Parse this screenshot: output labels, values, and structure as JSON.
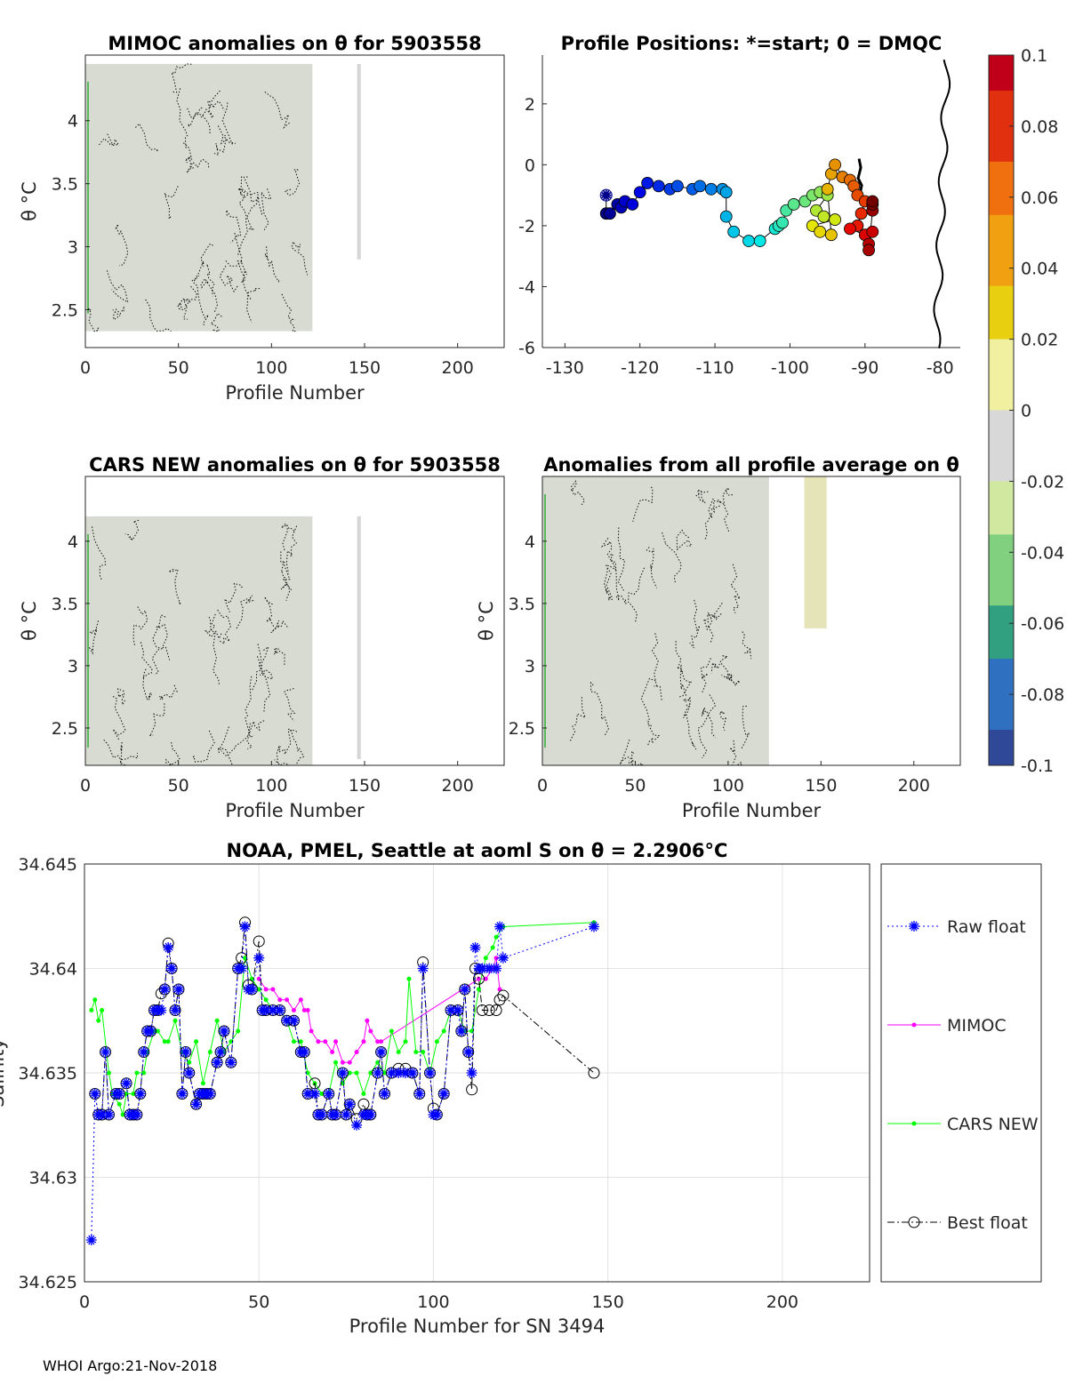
{
  "chart_data": [
    {
      "type": "heatmap",
      "title": "MIMOC anomalies on θ  for 5903558",
      "xlabel": "Profile Number",
      "ylabel": "θ °C",
      "xlim": [
        0,
        225
      ],
      "ylim": [
        2.2,
        4.52
      ],
      "xticks": [
        "0",
        "50",
        "100",
        "150",
        "200"
      ],
      "yticks": [
        "2.5",
        "3",
        "3.5",
        "4"
      ],
      "coverage": [
        {
          "x": [
            0,
            122
          ],
          "y": [
            2.33,
            4.45
          ]
        },
        {
          "x": [
            146,
            148
          ],
          "y": [
            2.9,
            4.45
          ]
        }
      ]
    },
    {
      "type": "scatter",
      "title": "Profile Positions: *=start; 0 = DMQC",
      "xlim": [
        -133,
        -77.3
      ],
      "ylim": [
        -6,
        3.6
      ],
      "xticks": [
        "-130",
        "-120",
        "-110",
        "-100",
        "-90",
        "-80"
      ],
      "yticks": [
        "-6",
        "-4",
        "-2",
        "0",
        "2"
      ],
      "lon": [
        -124.5,
        -124.5,
        -124,
        -123,
        -122.5,
        -122,
        -121,
        -120,
        -119,
        -117.5,
        -116,
        -115,
        -113,
        -112,
        -110.5,
        -109,
        -108.5,
        -108.5,
        -107.5,
        -105.5,
        -104,
        -102,
        -101.5,
        -101,
        -100.5,
        -99.5,
        -98,
        -97,
        -96,
        -95,
        -96.5,
        -95.5,
        -94,
        -97,
        -96,
        -94.5,
        -95,
        -94.5,
        -94,
        -93,
        -92,
        -91.5,
        -91,
        -90,
        -90.5,
        -91,
        -92,
        -90,
        -89,
        -89.5,
        -89.5,
        -89,
        -89,
        -89
      ],
      "lat": [
        -1.0,
        -1.6,
        -1.6,
        -1.3,
        -1.4,
        -1.2,
        -1.3,
        -0.9,
        -0.6,
        -0.7,
        -0.8,
        -0.7,
        -0.8,
        -0.7,
        -0.8,
        -0.8,
        -0.9,
        -1.7,
        -2.2,
        -2.5,
        -2.5,
        -2.1,
        -2.0,
        -1.9,
        -1.5,
        -1.3,
        -1.2,
        -1.0,
        -0.9,
        -1.0,
        -1.5,
        -1.7,
        -1.8,
        -2.0,
        -2.2,
        -2.3,
        -0.8,
        -0.3,
        0.0,
        -0.4,
        -0.5,
        -0.7,
        -1.0,
        -1.2,
        -1.6,
        -2.0,
        -2.1,
        -2.3,
        -2.2,
        -2.6,
        -2.8,
        -1.5,
        -1.3,
        -1.2
      ]
    },
    {
      "type": "heatmap",
      "title": "CARS NEW anomalies on θ for 5903558",
      "xlabel": "Profile Number",
      "ylabel": "θ °C",
      "xlim": [
        0,
        225
      ],
      "ylim": [
        2.2,
        4.52
      ],
      "xticks": [
        "0",
        "50",
        "100",
        "150",
        "200"
      ],
      "yticks": [
        "2.5",
        "3",
        "3.5",
        "4"
      ],
      "coverage": [
        {
          "x": [
            0,
            122
          ],
          "y": [
            2.2,
            4.2
          ]
        },
        {
          "x": [
            146,
            148
          ],
          "y": [
            2.25,
            4.2
          ]
        }
      ]
    },
    {
      "type": "heatmap",
      "title": "Anomalies from all profile average on θ",
      "xlabel": "Profile Number",
      "ylabel": "θ °C",
      "xlim": [
        0,
        225
      ],
      "ylim": [
        2.2,
        4.52
      ],
      "xticks": [
        "0",
        "50",
        "100",
        "150",
        "200"
      ],
      "yticks": [
        "2.5",
        "3",
        "3.5",
        "4"
      ],
      "coverage": [
        {
          "x": [
            0,
            122
          ],
          "y": [
            2.2,
            4.52
          ]
        },
        {
          "x": [
            141,
            153
          ],
          "y": [
            3.3,
            4.52
          ]
        }
      ]
    },
    {
      "type": "colorbar",
      "range": [
        -0.1,
        0.1
      ],
      "ticks": [
        "0.1",
        "0.08",
        "0.06",
        "0.04",
        "0.02",
        "0",
        "-0.02",
        "-0.04",
        "-0.06",
        "-0.08",
        "-0.1"
      ]
    },
    {
      "type": "line",
      "title": "NOAA, PMEL, Seattle at aoml S on θ = 2.2906°C",
      "xlabel": "Profile Number for SN 3494",
      "ylabel": "Salinity",
      "xlim": [
        0,
        225
      ],
      "ylim": [
        34.625,
        34.645
      ],
      "xticks": [
        "0",
        "50",
        "100",
        "150",
        "200"
      ],
      "yticks": [
        "34.625",
        "34.63",
        "34.635",
        "34.64",
        "34.645"
      ],
      "grid": true,
      "legend": "right",
      "series": [
        {
          "name": "Raw float",
          "color": "#0000ff",
          "x": [
            2,
            3,
            4,
            5,
            6,
            7,
            9,
            10,
            12,
            13,
            14,
            15,
            16,
            17,
            18,
            19,
            20,
            21,
            22,
            23,
            24,
            25,
            26,
            27,
            28,
            29,
            30,
            32,
            33,
            34,
            35,
            36,
            38,
            39,
            40,
            42,
            44,
            45,
            46,
            47,
            48,
            50,
            51,
            52,
            54,
            56,
            58,
            60,
            62,
            63,
            64,
            66,
            67,
            68,
            70,
            71,
            72,
            74,
            75,
            76,
            78,
            80,
            81,
            82,
            84,
            85,
            86,
            88,
            90,
            92,
            94,
            96,
            97,
            99,
            100,
            101,
            103,
            105,
            107,
            108,
            109,
            110,
            111,
            112,
            113,
            114,
            116,
            118,
            119,
            120,
            146
          ],
          "y": [
            34.627,
            34.634,
            34.633,
            34.633,
            34.636,
            34.633,
            34.634,
            34.634,
            34.6345,
            34.633,
            34.633,
            34.633,
            34.634,
            34.636,
            34.637,
            34.637,
            34.638,
            34.638,
            34.638,
            34.639,
            34.641,
            34.64,
            34.638,
            34.639,
            34.634,
            34.636,
            34.635,
            34.6335,
            34.634,
            34.634,
            34.634,
            34.634,
            34.6355,
            34.636,
            34.637,
            34.6355,
            34.64,
            34.64,
            34.642,
            34.639,
            34.639,
            34.6405,
            34.638,
            34.638,
            34.638,
            34.638,
            34.6375,
            34.6375,
            34.636,
            34.636,
            34.634,
            34.634,
            34.633,
            34.633,
            34.634,
            34.633,
            34.633,
            34.635,
            34.633,
            34.6335,
            34.6325,
            34.633,
            34.633,
            34.633,
            34.635,
            34.636,
            34.634,
            34.635,
            34.635,
            34.635,
            34.635,
            34.634,
            34.64,
            34.635,
            34.633,
            34.633,
            34.634,
            34.638,
            34.638,
            34.637,
            34.639,
            34.636,
            34.635,
            34.641,
            34.64,
            34.64,
            34.64,
            34.64,
            34.642,
            34.6405,
            34.642
          ]
        },
        {
          "name": "MIMOC",
          "color": "#ff00ff",
          "x": [
            50,
            52,
            54,
            56,
            58,
            60,
            62,
            63,
            64,
            65,
            67,
            69,
            71,
            72,
            74,
            76,
            78,
            80,
            81,
            82,
            84,
            85,
            113,
            115,
            117,
            118,
            119
          ],
          "y": [
            34.6395,
            34.639,
            34.639,
            34.6385,
            34.6385,
            34.638,
            34.6385,
            34.638,
            34.638,
            34.637,
            34.6365,
            34.6365,
            34.636,
            34.6365,
            34.6355,
            34.6355,
            34.636,
            34.6365,
            34.6375,
            34.637,
            34.6365,
            34.6365,
            34.6395,
            34.6395,
            34.64,
            34.6405,
            34.639
          ]
        },
        {
          "name": "CARS NEW",
          "color": "#00ff00",
          "x": [
            2,
            3,
            4,
            5,
            7,
            8,
            10,
            11,
            12,
            14,
            15,
            17,
            18,
            20,
            21,
            23,
            24,
            26,
            28,
            30,
            32,
            34,
            36,
            38,
            40,
            42,
            44,
            46,
            48,
            50,
            52,
            54,
            56,
            58,
            60,
            62,
            64,
            66,
            68,
            70,
            72,
            74,
            76,
            78,
            80,
            82,
            84,
            86,
            88,
            90,
            92,
            93,
            95,
            97,
            99,
            101,
            103,
            105,
            107,
            109,
            111,
            113,
            115,
            117,
            118,
            120,
            146
          ],
          "y": [
            34.638,
            34.6385,
            34.6375,
            34.638,
            34.635,
            34.634,
            34.6335,
            34.633,
            34.634,
            34.634,
            34.635,
            34.635,
            34.636,
            34.637,
            34.637,
            34.6365,
            34.6365,
            34.6375,
            34.636,
            34.6355,
            34.6365,
            34.6345,
            34.636,
            34.6375,
            34.636,
            34.6365,
            34.637,
            34.6405,
            34.6395,
            34.639,
            34.6385,
            34.638,
            34.638,
            34.6375,
            34.6365,
            34.6365,
            34.635,
            34.6345,
            34.634,
            34.634,
            34.6355,
            34.6345,
            34.635,
            34.635,
            34.634,
            34.635,
            34.6355,
            34.635,
            34.637,
            34.636,
            34.6365,
            34.6395,
            34.636,
            34.636,
            34.635,
            34.6365,
            34.637,
            34.638,
            34.638,
            34.637,
            34.637,
            34.639,
            34.6405,
            34.641,
            34.6415,
            34.642,
            34.6422
          ]
        },
        {
          "name": "Best float",
          "color": "#000000",
          "x": [
            3,
            4,
            5,
            6,
            7,
            9,
            10,
            12,
            13,
            14,
            15,
            16,
            17,
            18,
            19,
            20,
            21,
            22,
            23,
            24,
            25,
            26,
            27,
            28,
            29,
            30,
            32,
            33,
            34,
            35,
            36,
            38,
            39,
            40,
            42,
            44,
            45,
            46,
            47,
            48,
            50,
            51,
            52,
            54,
            56,
            58,
            60,
            62,
            63,
            64,
            66,
            67,
            68,
            70,
            71,
            72,
            74,
            75,
            76,
            78,
            80,
            81,
            82,
            84,
            85,
            86,
            88,
            90,
            92,
            94,
            96,
            97,
            99,
            100,
            101,
            103,
            105,
            107,
            108,
            109,
            110,
            111,
            112,
            113,
            114,
            116,
            118,
            119,
            120,
            146
          ],
          "y": [
            34.634,
            34.633,
            34.633,
            34.636,
            34.633,
            34.634,
            34.634,
            34.6345,
            34.633,
            34.633,
            34.633,
            34.634,
            34.636,
            34.637,
            34.637,
            34.638,
            34.638,
            34.6388,
            34.639,
            34.6412,
            34.64,
            34.638,
            34.639,
            34.634,
            34.636,
            34.635,
            34.6335,
            34.634,
            34.634,
            34.634,
            34.634,
            34.6355,
            34.636,
            34.637,
            34.6355,
            34.64,
            34.6405,
            34.6422,
            34.6392,
            34.639,
            34.6413,
            34.638,
            34.638,
            34.638,
            34.638,
            34.6375,
            34.6375,
            34.636,
            34.636,
            34.634,
            34.6345,
            34.633,
            34.633,
            34.634,
            34.633,
            34.633,
            34.635,
            34.633,
            34.6335,
            34.6328,
            34.6335,
            34.633,
            34.633,
            34.635,
            34.636,
            34.634,
            34.635,
            34.6352,
            34.6352,
            34.635,
            34.634,
            34.6403,
            34.635,
            34.6333,
            34.633,
            34.634,
            34.638,
            34.638,
            34.637,
            34.639,
            34.636,
            34.6342,
            34.64,
            34.6395,
            34.638,
            34.638,
            34.638,
            34.6385,
            34.6387,
            34.635
          ]
        }
      ]
    }
  ],
  "footer": "WHOI Argo:21-Nov-2018"
}
